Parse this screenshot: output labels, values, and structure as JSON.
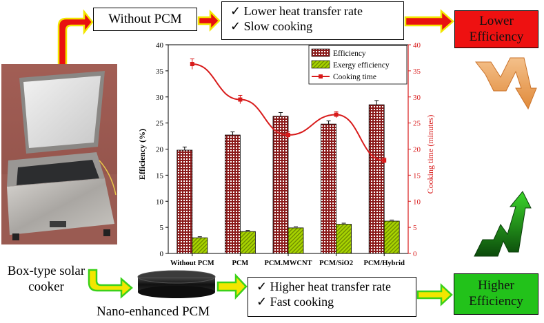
{
  "top_row": {
    "without_label": "Without PCM",
    "bullets": [
      "Lower heat transfer rate",
      "Slow cooking"
    ],
    "result": "Lower Efficiency",
    "result_color": "#ee1111"
  },
  "bottom_row": {
    "bullets": [
      "Higher heat transfer rate",
      "Fast cooking"
    ],
    "result": "Higher Efficiency",
    "result_color": "#22c21a"
  },
  "left_labels": {
    "cooker": "Box-type solar cooker",
    "pcm": "Nano-enhanced PCM"
  },
  "check_mark": "✓",
  "colors": {
    "arrow_red": "#e81010",
    "arrow_yellow": "#f2e600",
    "arrow_green": "#3ad11a",
    "bar_efficiency": "#8b1a1a",
    "bar_exergy": "#a8d400",
    "line_time": "#d81b1b"
  },
  "chart_data": {
    "type": "bar",
    "categories": [
      "Without PCM",
      "PCM",
      "PCM.MWCNT",
      "PCM/SiO2",
      "PCM/Hybrid"
    ],
    "series": [
      {
        "name": "Efficiency",
        "kind": "bar",
        "values": [
          19.8,
          22.7,
          26.3,
          24.8,
          28.5
        ],
        "errors": [
          0.6,
          0.6,
          0.7,
          0.6,
          0.8
        ]
      },
      {
        "name": "Exergy efficiency",
        "kind": "bar",
        "values": [
          3.0,
          4.2,
          4.9,
          5.6,
          6.2
        ],
        "errors": [
          0.2,
          0.2,
          0.2,
          0.2,
          0.2
        ]
      },
      {
        "name": "Cooking time",
        "kind": "line",
        "axis": "right",
        "values": [
          36.3,
          29.5,
          22.7,
          26.6,
          17.8
        ],
        "errors": [
          1.0,
          0.8,
          0.6,
          0.6,
          0.5
        ]
      }
    ],
    "ylabel": "Efficiency (%)",
    "ylabel_right": "Cooking time (minutes)",
    "ylim": [
      0,
      40
    ],
    "ylim_right": [
      0,
      40
    ],
    "yticks": [
      "0",
      "5",
      "10",
      "15",
      "20",
      "25",
      "30",
      "35",
      "40"
    ],
    "legend_position": "top-right",
    "grid": false
  }
}
